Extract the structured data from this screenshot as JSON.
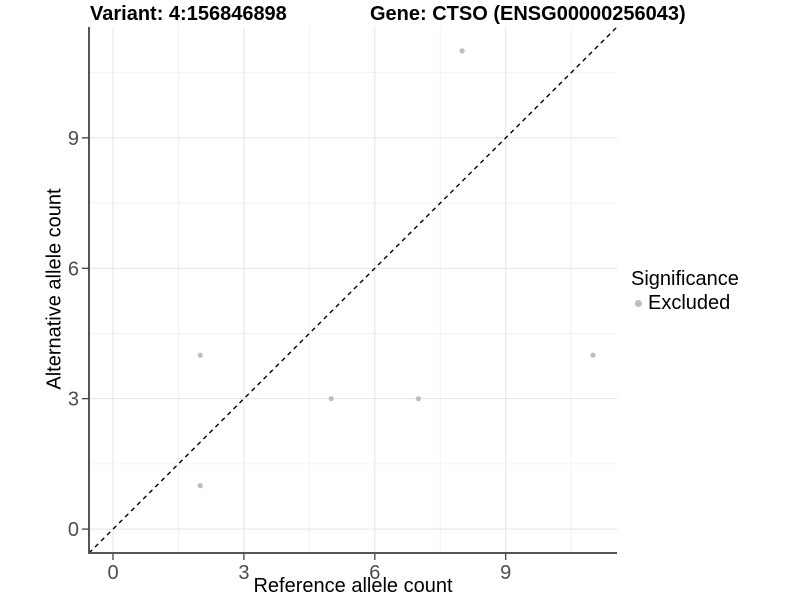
{
  "figure": {
    "title_left": "Variant: 4:156846898",
    "title_right": "Gene: CTSO (ENSG00000256043)"
  },
  "axes": {
    "x_label": "Reference allele count",
    "y_label": "Alternative allele count"
  },
  "legend": {
    "title": "Significance",
    "entries": [
      {
        "label": "Excluded",
        "color": "#bdbdbd"
      }
    ]
  },
  "colors": {
    "background": "#ffffff",
    "point": "#bdbdbd",
    "axis_line": "#555555",
    "tick_mark": "#333333",
    "tick_label": "#4d4d4d",
    "grid_major": "#e4e4e4",
    "grid_minor": "#f2f2f2",
    "reference_line": "#000000"
  },
  "chart_data": {
    "type": "scatter",
    "title": "Variant: 4:156846898  |  Gene: CTSO (ENSG00000256043)",
    "xlabel": "Reference allele count",
    "ylabel": "Alternative allele count",
    "xlim": [
      -0.55,
      11.55
    ],
    "ylim": [
      -0.55,
      11.55
    ],
    "x_ticks": [
      0,
      3,
      6,
      9
    ],
    "y_ticks": [
      0,
      3,
      6,
      9
    ],
    "x_minor_ticks": [
      1.5,
      4.5,
      7.5,
      10.5
    ],
    "y_minor_ticks": [
      1.5,
      4.5,
      7.5,
      10.5
    ],
    "grid": true,
    "legend_position": "right",
    "series": [
      {
        "name": "Excluded",
        "color": "#bdbdbd",
        "points": [
          [
            2,
            1
          ],
          [
            2,
            4
          ],
          [
            5,
            3
          ],
          [
            7,
            3
          ],
          [
            8,
            11
          ],
          [
            11,
            4
          ]
        ]
      }
    ],
    "reference_line": {
      "type": "identity",
      "style": "dashed",
      "color": "#000000"
    }
  }
}
